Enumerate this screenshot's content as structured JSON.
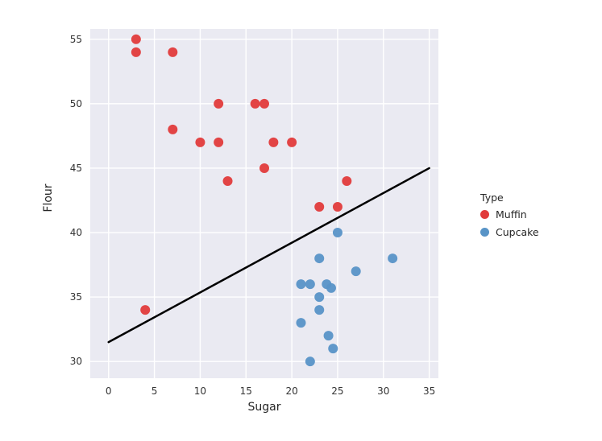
{
  "figure": {
    "background": "#ffffff",
    "panel_background": "#eaeaf2",
    "grid_color": "#ffffff",
    "tick_color": "#333333"
  },
  "chart_data": {
    "type": "scatter",
    "title": "",
    "xlabel": "Sugar",
    "ylabel": "Flour",
    "xlim": [
      -2,
      36
    ],
    "ylim": [
      28.7,
      55.8
    ],
    "xticks": [
      0,
      5,
      10,
      15,
      20,
      25,
      30,
      35
    ],
    "yticks": [
      30,
      35,
      40,
      45,
      50,
      55
    ],
    "grid": true,
    "legend": {
      "title": "Type",
      "position": "right",
      "entries": [
        {
          "label": "Muffin",
          "color": "#e13b3b"
        },
        {
          "label": "Cupcake",
          "color": "#5894c7"
        }
      ]
    },
    "series": [
      {
        "name": "Muffin",
        "color": "#e13b3b",
        "points": [
          [
            3,
            55
          ],
          [
            3,
            54
          ],
          [
            7,
            54
          ],
          [
            12,
            50
          ],
          [
            16,
            50
          ],
          [
            17,
            50
          ],
          [
            7,
            48
          ],
          [
            10,
            47
          ],
          [
            12,
            47
          ],
          [
            18,
            47
          ],
          [
            20,
            47
          ],
          [
            17,
            45
          ],
          [
            13,
            44
          ],
          [
            26,
            44
          ],
          [
            23,
            42
          ],
          [
            25,
            42
          ],
          [
            4,
            34
          ]
        ]
      },
      {
        "name": "Cupcake",
        "color": "#5894c7",
        "points": [
          [
            25,
            40
          ],
          [
            23,
            38
          ],
          [
            31,
            38
          ],
          [
            27,
            37
          ],
          [
            21,
            36
          ],
          [
            22,
            36
          ],
          [
            23.8,
            36
          ],
          [
            24.3,
            35.7
          ],
          [
            23,
            35
          ],
          [
            23,
            34
          ],
          [
            21,
            33
          ],
          [
            24,
            32
          ],
          [
            24.5,
            31
          ],
          [
            22,
            30
          ]
        ]
      }
    ],
    "boundary_line": {
      "x1": 0,
      "y1": 31.5,
      "x2": 35,
      "y2": 45,
      "color": "#000000",
      "width": 2.5
    }
  }
}
